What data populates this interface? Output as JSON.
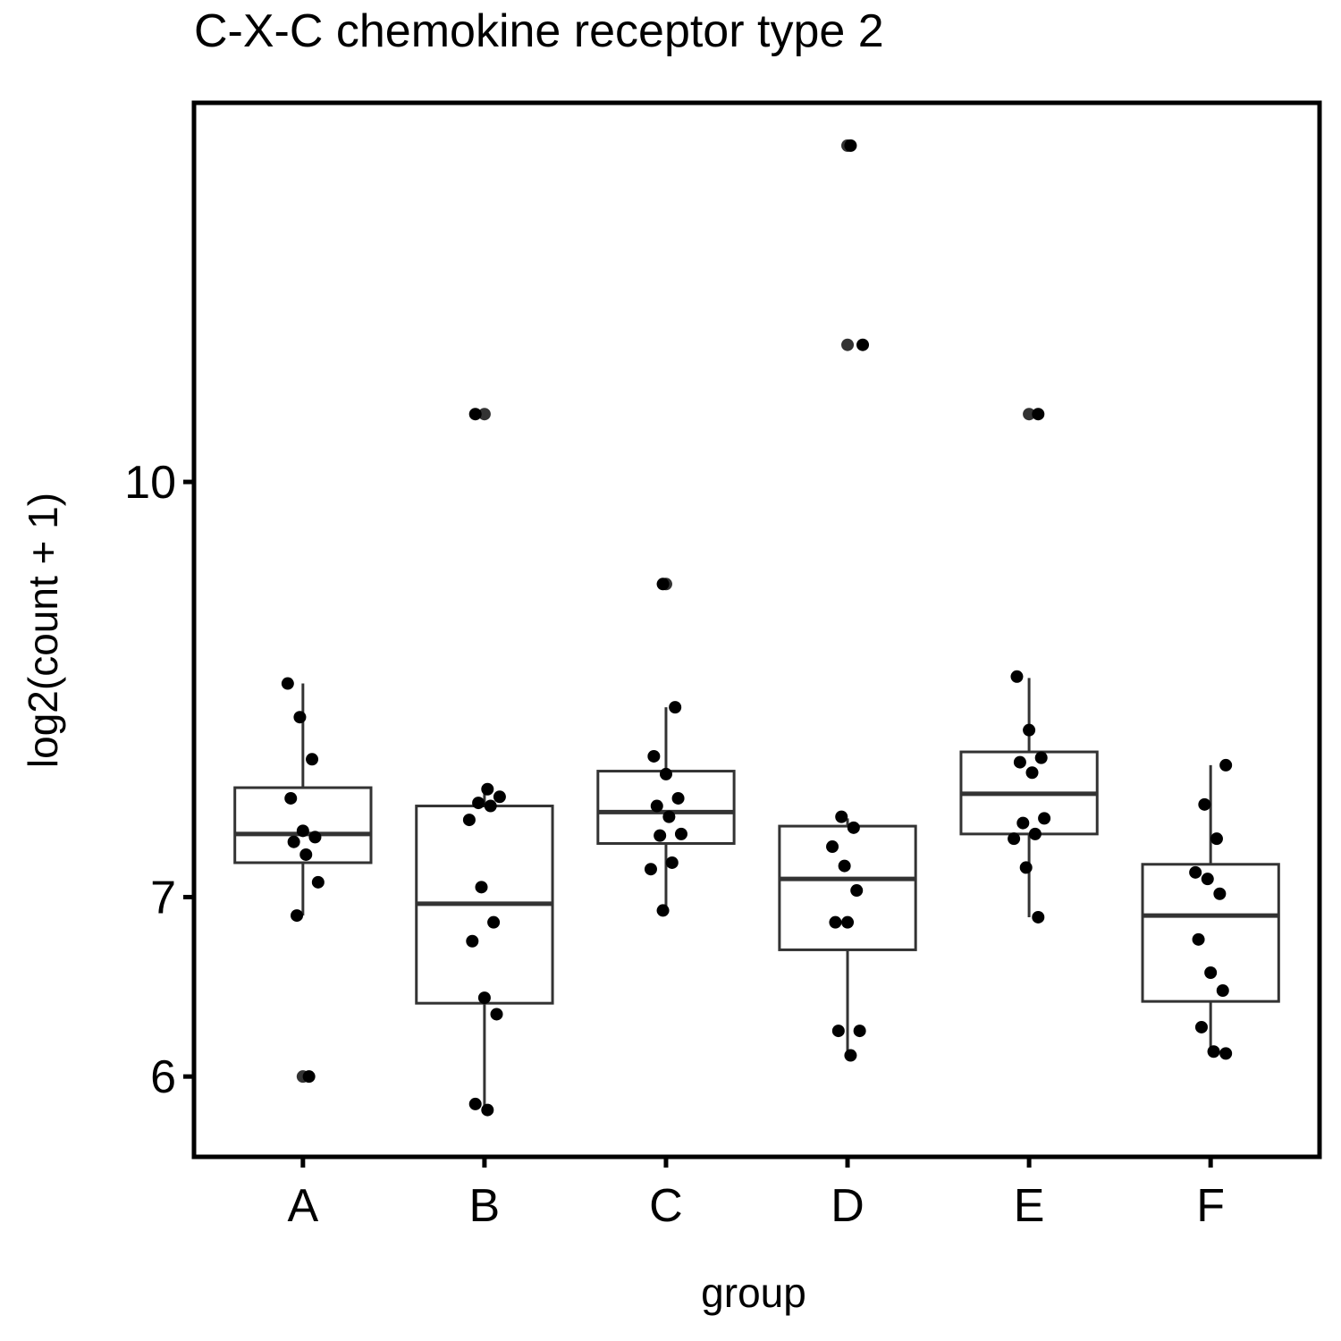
{
  "chart_data": {
    "type": "box",
    "title": "C-X-C chemokine receptor type 2",
    "x_label": "group",
    "y_label": "log2(count + 1)",
    "log_y": true,
    "ylim": [
      5.6,
      13.85
    ],
    "yticks": [
      6,
      7,
      10
    ],
    "categories": [
      "A",
      "B",
      "C",
      "D",
      "E",
      "F"
    ],
    "boxes": [
      {
        "whisker_low": 6.89,
        "q1": 7.21,
        "median": 7.39,
        "q3": 7.69,
        "whisker_high": 8.41,
        "outliers": [
          6.0
        ]
      },
      {
        "whisker_low": 5.83,
        "q1": 6.39,
        "median": 6.96,
        "q3": 7.57,
        "whisker_high": 7.68,
        "outliers": [
          10.6
        ]
      },
      {
        "whisker_low": 6.92,
        "q1": 7.33,
        "median": 7.53,
        "q3": 7.8,
        "whisker_high": 8.24,
        "outliers": [
          9.16
        ]
      },
      {
        "whisker_low": 6.11,
        "q1": 6.69,
        "median": 7.11,
        "q3": 7.44,
        "whisker_high": 7.49,
        "outliers": [
          13.35,
          11.25
        ]
      },
      {
        "whisker_low": 6.88,
        "q1": 7.39,
        "median": 7.65,
        "q3": 7.93,
        "whisker_high": 8.45,
        "outliers": [
          10.6
        ]
      },
      {
        "whisker_low": 6.11,
        "q1": 6.4,
        "median": 6.89,
        "q3": 7.2,
        "whisker_high": 7.84,
        "outliers": []
      }
    ],
    "points": [
      [
        8.41,
        8.17,
        7.88,
        7.62,
        7.41,
        7.37,
        7.34,
        7.26,
        7.09,
        6.89,
        6.0
      ],
      [
        10.6,
        7.68,
        7.63,
        7.59,
        7.57,
        7.48,
        7.06,
        6.85,
        6.74,
        6.42,
        6.33,
        5.86,
        5.83
      ],
      [
        9.16,
        8.24,
        7.9,
        7.78,
        7.62,
        7.57,
        7.5,
        7.39,
        7.38,
        7.21,
        7.17,
        6.92
      ],
      [
        13.35,
        11.25,
        7.5,
        7.43,
        7.31,
        7.19,
        7.04,
        6.85,
        6.85,
        6.24,
        6.24,
        6.11
      ],
      [
        10.6,
        8.46,
        8.08,
        7.89,
        7.86,
        7.79,
        7.49,
        7.46,
        7.39,
        7.36,
        7.18,
        6.88
      ],
      [
        7.84,
        7.58,
        7.36,
        7.15,
        7.11,
        7.02,
        6.75,
        6.56,
        6.46,
        6.26,
        6.13,
        6.12
      ]
    ],
    "box_color": "#333333",
    "point_color": "#000000"
  }
}
